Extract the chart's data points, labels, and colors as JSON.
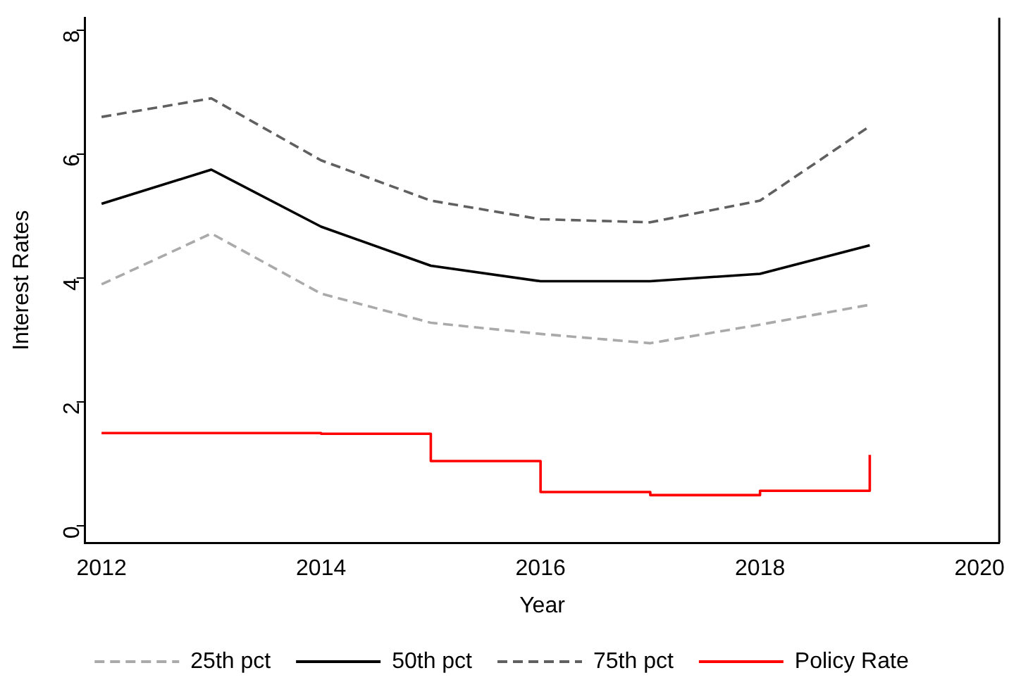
{
  "chart_data": {
    "type": "line",
    "xlabel": "Year",
    "ylabel": "Interest Rates",
    "x": [
      2012,
      2013,
      2014,
      2015,
      2016,
      2017,
      2018,
      2019
    ],
    "xlim": [
      2011.85,
      2020.18
    ],
    "xticks": [
      2012,
      2014,
      2016,
      2018,
      2020
    ],
    "ylim": [
      -0.27,
      8.2
    ],
    "yticks": [
      0,
      2,
      4,
      6,
      8
    ],
    "grid": false,
    "legend": "bottom",
    "marker": "none",
    "series": [
      {
        "name": "25th pct",
        "color": "#aaaaaa",
        "line_style": "dashed",
        "values": [
          3.9,
          4.72,
          3.75,
          3.28,
          3.1,
          2.95,
          3.25,
          3.57
        ]
      },
      {
        "name": "50th pct",
        "color": "#000000",
        "line_style": "solid",
        "values": [
          5.2,
          5.75,
          4.83,
          4.2,
          3.95,
          3.95,
          4.07,
          4.53
        ]
      },
      {
        "name": "75th pct",
        "color": "#606060",
        "line_style": "dashed",
        "values": [
          6.6,
          6.9,
          5.9,
          5.25,
          4.95,
          4.9,
          5.25,
          6.45
        ]
      },
      {
        "name": "Policy Rate",
        "type": "step",
        "color": "#ff0000",
        "line_style": "solid",
        "values": [
          1.5,
          1.5,
          1.49,
          1.05,
          0.55,
          0.5,
          0.57,
          1.15
        ]
      }
    ]
  }
}
